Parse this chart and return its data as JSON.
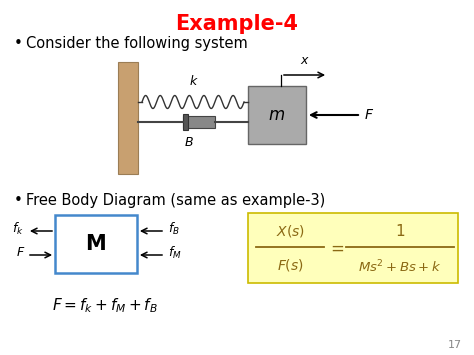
{
  "title": "Example-4",
  "title_color": "#FF0000",
  "title_fontsize": 15,
  "bg_color": "#FFFFFF",
  "bullet1": "Consider the following system",
  "bullet2": "Free Body Diagram (same as example-3)",
  "page_number": "17",
  "wall_color": "#C8A070",
  "wall_edge_color": "#9B7D55",
  "mass_color": "#AAAAAA",
  "mass_edge_color": "#666666",
  "fbd_box_color": "#4488CC",
  "tf_bg_color": "#FFFFBB",
  "tf_border_color": "#CCBB00",
  "tf_text_color": "#8B6914"
}
